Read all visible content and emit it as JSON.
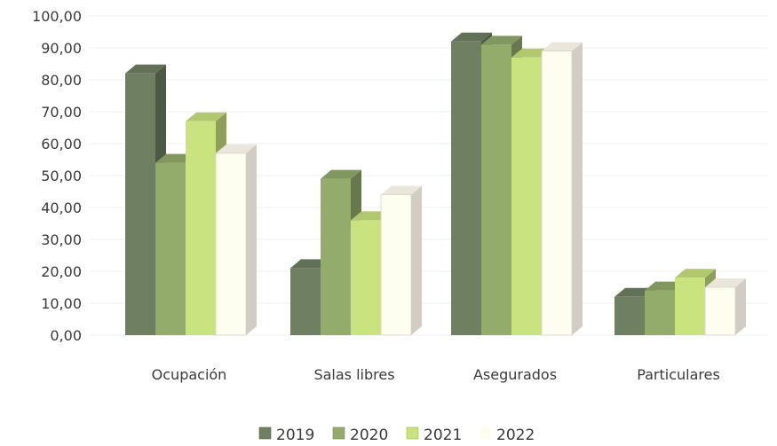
{
  "chart_data": {
    "type": "bar",
    "title": "",
    "xlabel": "",
    "ylabel": "",
    "categories": [
      "Ocupación",
      "Salas libres",
      "Asegurados",
      "Particulares"
    ],
    "series": [
      {
        "name": "2019",
        "values": [
          82,
          21,
          92,
          12
        ],
        "color": "#6f7f62"
      },
      {
        "name": "2020",
        "values": [
          54,
          49,
          91,
          14
        ],
        "color": "#93ac6c"
      },
      {
        "name": "2021",
        "values": [
          67,
          36,
          87,
          18
        ],
        "color": "#c9e37e"
      },
      {
        "name": "2022",
        "values": [
          57,
          44,
          89,
          15
        ],
        "color": "#fdfdf0"
      }
    ],
    "ylim": [
      0,
      100
    ],
    "y_ticks": [
      "0,00",
      "10,00",
      "20,00",
      "30,00",
      "40,00",
      "50,00",
      "60,00",
      "70,00",
      "80,00",
      "90,00",
      "100,00"
    ],
    "grid": true,
    "legend_position": "bottom",
    "style": "3d-clustered-column"
  }
}
